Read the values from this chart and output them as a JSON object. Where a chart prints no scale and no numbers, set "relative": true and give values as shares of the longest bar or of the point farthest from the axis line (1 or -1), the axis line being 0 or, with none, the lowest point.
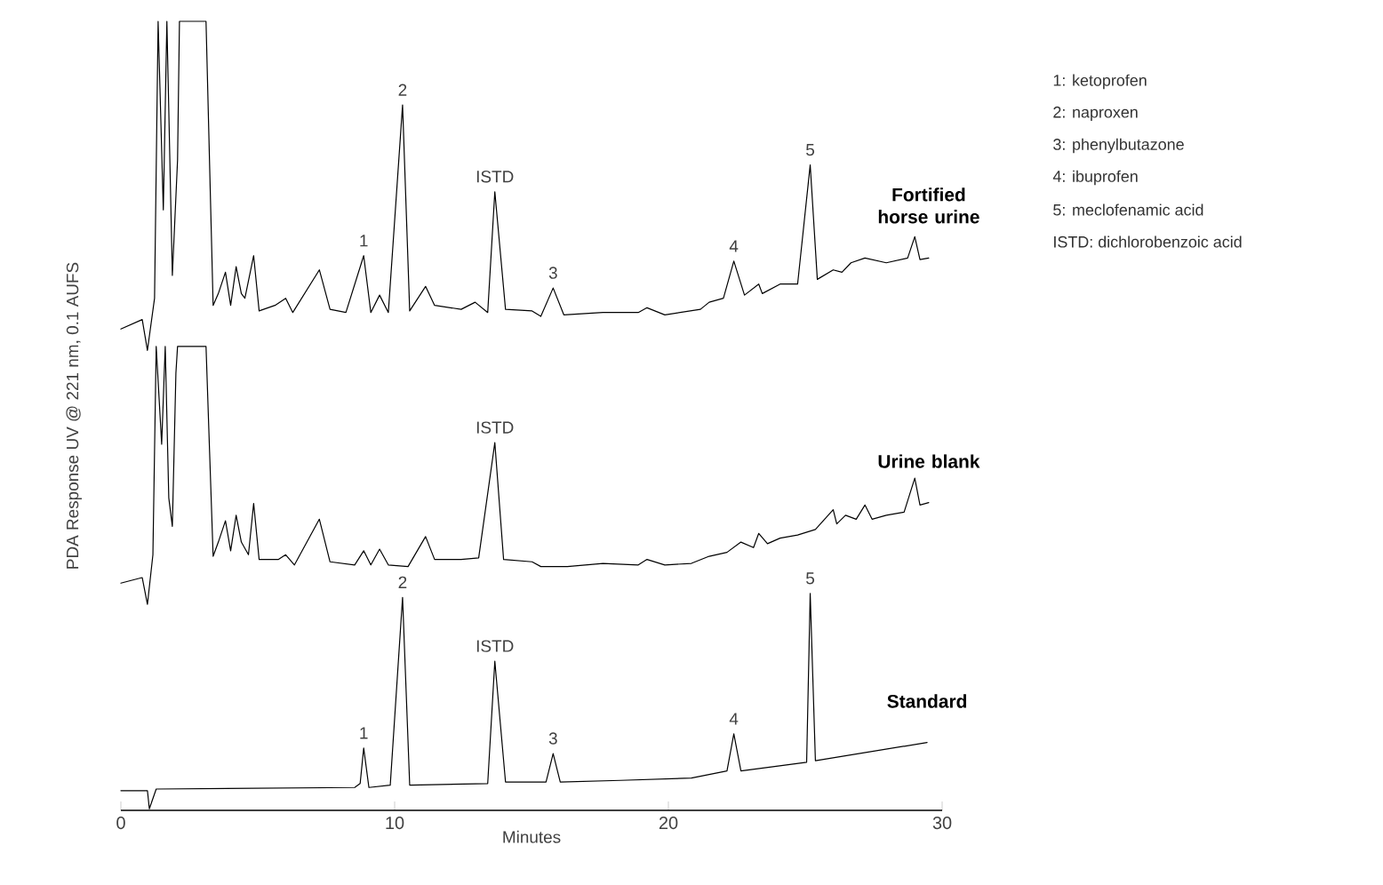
{
  "chart_data": {
    "type": "line",
    "relative": true,
    "xlabel": "Minutes",
    "ylabel": "PDA Response UV @ 221 nm,  0.1 AUFS",
    "xlim": [
      0,
      30
    ],
    "xticks": [
      0,
      10,
      20,
      30
    ],
    "legend": false,
    "grid": false,
    "marker": "none",
    "line_style": "solid",
    "series": [
      {
        "name": "Fortified horse urine",
        "color": "#000000",
        "x": [
          0,
          0.78,
          0.97,
          1.23,
          1.36,
          1.55,
          1.68,
          1.88,
          2.07,
          2.14,
          3.11,
          3.37,
          3.56,
          3.82,
          4.01,
          4.21,
          4.4,
          4.53,
          4.85,
          5.05,
          5.63,
          6.02,
          6.28,
          7.25,
          7.64,
          8.22,
          8.87,
          9.13,
          9.45,
          9.77,
          10.29,
          10.55,
          11.13,
          11.46,
          12.43,
          12.94,
          13.4,
          13.66,
          14.05,
          15.02,
          15.34,
          15.79,
          16.18,
          17.61,
          18.9,
          19.22,
          19.87,
          21.17,
          21.49,
          22.01,
          22.39,
          22.78,
          23.3,
          23.43,
          24.08,
          24.72,
          25.18,
          25.44,
          26.02,
          26.34,
          26.67,
          27.18,
          27.96,
          28.74,
          29.0,
          29.19,
          29.51
        ],
        "values": [
          0.61,
          0.622,
          0.583,
          0.649,
          1.0,
          0.761,
          1.0,
          0.678,
          0.824,
          1.0,
          1.0,
          0.64,
          0.655,
          0.682,
          0.64,
          0.689,
          0.655,
          0.649,
          0.703,
          0.633,
          0.64,
          0.649,
          0.631,
          0.685,
          0.635,
          0.631,
          0.703,
          0.631,
          0.653,
          0.631,
          0.894,
          0.633,
          0.664,
          0.64,
          0.635,
          0.644,
          0.631,
          0.784,
          0.635,
          0.633,
          0.626,
          0.662,
          0.628,
          0.631,
          0.631,
          0.637,
          0.628,
          0.635,
          0.644,
          0.649,
          0.696,
          0.653,
          0.667,
          0.655,
          0.667,
          0.667,
          0.818,
          0.673,
          0.685,
          0.682,
          0.694,
          0.7,
          0.694,
          0.7,
          0.727,
          0.698,
          0.7
        ]
      },
      {
        "name": "Urine blank",
        "color": "#000000",
        "x": [
          0,
          0.78,
          0.97,
          1.17,
          1.29,
          1.49,
          1.62,
          1.75,
          1.88,
          2.01,
          2.07,
          2.14,
          3.11,
          3.37,
          3.56,
          3.82,
          4.01,
          4.21,
          4.4,
          4.66,
          4.85,
          5.05,
          5.76,
          6.02,
          6.34,
          7.25,
          7.64,
          8.54,
          8.87,
          9.13,
          9.45,
          9.77,
          10.49,
          11.13,
          11.46,
          12.43,
          13.07,
          13.66,
          13.98,
          15.02,
          15.34,
          16.31,
          17.61,
          18.9,
          19.22,
          19.87,
          20.84,
          21.49,
          22.14,
          22.65,
          23.11,
          23.3,
          23.62,
          24.08,
          24.72,
          25.37,
          26.02,
          26.15,
          26.47,
          26.86,
          27.18,
          27.44,
          27.96,
          28.61,
          29.0,
          29.19,
          29.51
        ],
        "values": [
          0.288,
          0.295,
          0.261,
          0.324,
          0.588,
          0.464,
          0.588,
          0.396,
          0.36,
          0.554,
          0.588,
          0.588,
          0.588,
          0.322,
          0.34,
          0.367,
          0.329,
          0.374,
          0.34,
          0.324,
          0.389,
          0.318,
          0.318,
          0.324,
          0.311,
          0.369,
          0.315,
          0.311,
          0.329,
          0.311,
          0.331,
          0.311,
          0.309,
          0.347,
          0.318,
          0.318,
          0.32,
          0.466,
          0.318,
          0.315,
          0.309,
          0.309,
          0.313,
          0.311,
          0.318,
          0.311,
          0.313,
          0.322,
          0.327,
          0.34,
          0.333,
          0.351,
          0.338,
          0.345,
          0.349,
          0.356,
          0.381,
          0.363,
          0.374,
          0.369,
          0.387,
          0.369,
          0.374,
          0.378,
          0.421,
          0.387,
          0.39
        ]
      },
      {
        "name": "Standard",
        "color": "#000000",
        "x": [
          0,
          0.97,
          1.04,
          1.29,
          8.54,
          8.74,
          8.87,
          9.06,
          9.84,
          10.29,
          10.55,
          13.4,
          13.66,
          14.05,
          15.53,
          15.79,
          16.05,
          18.25,
          20.84,
          22.14,
          22.39,
          22.65,
          25.05,
          25.18,
          25.37,
          29.45
        ],
        "values": [
          0.025,
          0.025,
          0.002,
          0.027,
          0.029,
          0.034,
          0.079,
          0.029,
          0.032,
          0.27,
          0.032,
          0.034,
          0.189,
          0.036,
          0.036,
          0.072,
          0.036,
          0.038,
          0.041,
          0.05,
          0.097,
          0.05,
          0.061,
          0.275,
          0.063,
          0.086
        ]
      }
    ],
    "annotations": [
      {
        "text": "1",
        "x": 8.87,
        "y": 0.703
      },
      {
        "text": "2",
        "x": 10.29,
        "y": 0.894
      },
      {
        "text": "ISTD",
        "x": 13.66,
        "y": 0.784
      },
      {
        "text": "3",
        "x": 15.79,
        "y": 0.662
      },
      {
        "text": "4",
        "x": 22.39,
        "y": 0.696
      },
      {
        "text": "5",
        "x": 25.18,
        "y": 0.818
      },
      {
        "text": "ISTD",
        "x": 13.66,
        "y": 0.466
      },
      {
        "text": "1",
        "x": 8.87,
        "y": 0.079
      },
      {
        "text": "2",
        "x": 10.29,
        "y": 0.27
      },
      {
        "text": "ISTD",
        "x": 13.66,
        "y": 0.189
      },
      {
        "text": "3",
        "x": 15.79,
        "y": 0.072
      },
      {
        "text": "4",
        "x": 22.39,
        "y": 0.097
      },
      {
        "text": "5",
        "x": 25.18,
        "y": 0.275
      },
      "1: ketoprofen",
      "2: naproxen",
      "3: phenylbutazone",
      "4: ibuprofen",
      "5: meclofenamic acid",
      "ISTD: dichlorobenzoic acid"
    ]
  }
}
